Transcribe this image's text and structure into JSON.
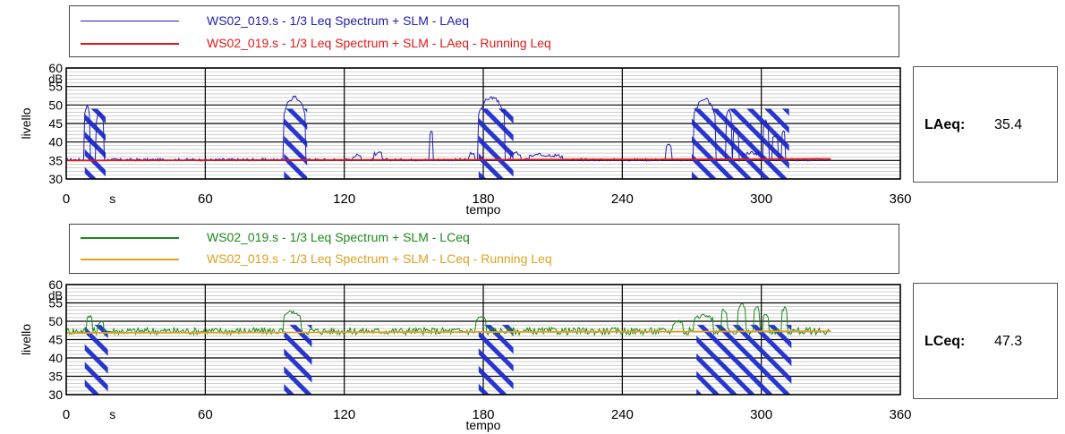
{
  "top": {
    "legend": [
      {
        "label": "WS02_019.s - 1/3 Leq Spectrum + SLM - LAeq",
        "color": "#2020b0"
      },
      {
        "label": "WS02_019.s - 1/3 Leq Spectrum + SLM - LAeq - Running Leq",
        "color": "#e01818"
      }
    ],
    "value_label": "LAeq:",
    "value": "35.4"
  },
  "bottom": {
    "legend": [
      {
        "label": "WS02_019.s - 1/3 Leq Spectrum + SLM - LCeq",
        "color": "#1a8a1a"
      },
      {
        "label": "WS02_019.s - 1/3 Leq Spectrum + SLM - LCeq - Running Leq",
        "color": "#e0a020"
      }
    ],
    "value_label": "LCeq:",
    "value": "47.3"
  },
  "chart_data": [
    {
      "type": "line",
      "xlabel": "tempo",
      "ylabel": "livello",
      "yunit": "dB",
      "xunit": "s",
      "xlim": [
        0,
        360
      ],
      "ylim": [
        30,
        60
      ],
      "xticks": [
        0,
        60,
        120,
        180,
        240,
        300,
        360
      ],
      "yticks": [
        30,
        35,
        40,
        45,
        50,
        55,
        60
      ],
      "series": [
        {
          "name": "WS02_019.s - 1/3 Leq Spectrum + SLM - LAeq",
          "color": "#2020b0",
          "baseline": 35.2,
          "events": [
            [
              8,
              10,
              49.5
            ],
            [
              13,
              16,
              47.5
            ],
            [
              94,
              103,
              52
            ],
            [
              124,
              127,
              36.5
            ],
            [
              133,
              136,
              37
            ],
            [
              157,
              158,
              43
            ],
            [
              174,
              176,
              37
            ],
            [
              178,
              189,
              52
            ],
            [
              192,
              196,
              37
            ],
            [
              200,
              214,
              36.5
            ],
            [
              259,
              261,
              39
            ],
            [
              271,
              280,
              51.5
            ],
            [
              285,
              287,
              49
            ],
            [
              288,
              290,
              44
            ],
            [
              292,
              300,
              37
            ],
            [
              301,
              303,
              45.5
            ],
            [
              305,
              307,
              42
            ],
            [
              309,
              310,
              43
            ]
          ]
        },
        {
          "name": "WS02_019.s - 1/3 Leq Spectrum + SLM - LAeq - Running Leq",
          "color": "#e01818",
          "running": [
            [
              0,
              35.0
            ],
            [
              330,
              35.4
            ]
          ]
        }
      ],
      "hatch_regions": [
        [
          8,
          17
        ],
        [
          94,
          104
        ],
        [
          178,
          193
        ],
        [
          270,
          312
        ]
      ],
      "grid": true
    },
    {
      "type": "line",
      "xlabel": "tempo",
      "ylabel": "livello",
      "yunit": "dB",
      "xunit": "s",
      "xlim": [
        0,
        360
      ],
      "ylim": [
        30,
        60
      ],
      "xticks": [
        0,
        60,
        120,
        180,
        240,
        300,
        360
      ],
      "yticks": [
        30,
        35,
        40,
        45,
        50,
        55,
        60
      ],
      "series": [
        {
          "name": "WS02_019.s - 1/3 Leq Spectrum + SLM - LCeq",
          "color": "#1a8a1a",
          "baseline": 47.3,
          "events": [
            [
              9,
              11,
              51.5
            ],
            [
              14,
              16,
              50
            ],
            [
              94,
              101,
              52.5
            ],
            [
              177,
              181,
              51
            ],
            [
              262,
              266,
              50
            ],
            [
              271,
              279,
              51.5
            ],
            [
              283,
              285,
              53
            ],
            [
              290,
              293,
              54.5
            ],
            [
              297,
              299,
              54
            ],
            [
              301,
              303,
              52
            ],
            [
              309,
              311,
              53.5
            ]
          ]
        },
        {
          "name": "WS02_019.s - 1/3 Leq Spectrum + SLM - LCeq - Running Leq",
          "color": "#e0a020",
          "running": [
            [
              0,
              46.8
            ],
            [
              330,
              47.3
            ]
          ]
        }
      ],
      "hatch_regions": [
        [
          8,
          18
        ],
        [
          94,
          106
        ],
        [
          178,
          193
        ],
        [
          272,
          313
        ]
      ],
      "grid": true
    }
  ]
}
